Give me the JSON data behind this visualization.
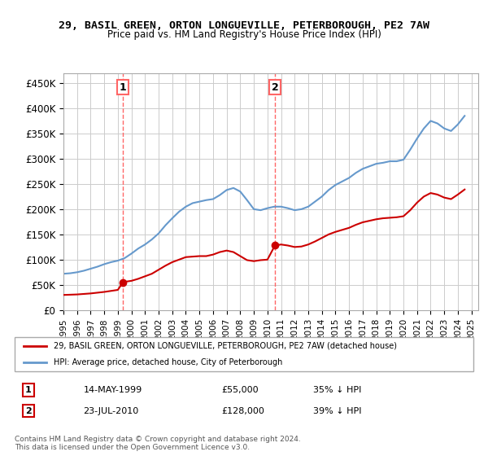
{
  "title": "29, BASIL GREEN, ORTON LONGUEVILLE, PETERBOROUGH, PE2 7AW",
  "subtitle": "Price paid vs. HM Land Registry's House Price Index (HPI)",
  "ylabel": "",
  "ylim": [
    0,
    470000
  ],
  "yticks": [
    0,
    50000,
    100000,
    150000,
    200000,
    250000,
    300000,
    350000,
    400000,
    450000
  ],
  "ytick_labels": [
    "£0",
    "£50K",
    "£100K",
    "£150K",
    "£200K",
    "£250K",
    "£300K",
    "£350K",
    "£400K",
    "£450K"
  ],
  "background_color": "#ffffff",
  "plot_bg_color": "#ffffff",
  "grid_color": "#cccccc",
  "sale1_date": 1999.37,
  "sale1_price": 55000,
  "sale1_label": "1",
  "sale1_vline_color": "#ff6666",
  "sale2_date": 2010.55,
  "sale2_price": 128000,
  "sale2_label": "2",
  "sale2_vline_color": "#ff6666",
  "red_line_color": "#cc0000",
  "blue_line_color": "#6699cc",
  "legend_red_label": "29, BASIL GREEN, ORTON LONGUEVILLE, PETERBOROUGH, PE2 7AW (detached house)",
  "legend_blue_label": "HPI: Average price, detached house, City of Peterborough",
  "table_row1": [
    "1",
    "14-MAY-1999",
    "£55,000",
    "35% ↓ HPI"
  ],
  "table_row2": [
    "2",
    "23-JUL-2010",
    "£128,000",
    "39% ↓ HPI"
  ],
  "footer": "Contains HM Land Registry data © Crown copyright and database right 2024.\nThis data is licensed under the Open Government Licence v3.0.",
  "hpi_years": [
    1995.0,
    1995.5,
    1996.0,
    1996.5,
    1997.0,
    1997.5,
    1998.0,
    1998.5,
    1999.0,
    1999.5,
    2000.0,
    2000.5,
    2001.0,
    2001.5,
    2002.0,
    2002.5,
    2003.0,
    2003.5,
    2004.0,
    2004.5,
    2005.0,
    2005.5,
    2006.0,
    2006.5,
    2007.0,
    2007.5,
    2008.0,
    2008.5,
    2009.0,
    2009.5,
    2010.0,
    2010.5,
    2011.0,
    2011.5,
    2012.0,
    2012.5,
    2013.0,
    2013.5,
    2014.0,
    2014.5,
    2015.0,
    2015.5,
    2016.0,
    2016.5,
    2017.0,
    2017.5,
    2018.0,
    2018.5,
    2019.0,
    2019.5,
    2020.0,
    2020.5,
    2021.0,
    2021.5,
    2022.0,
    2022.5,
    2023.0,
    2023.5,
    2024.0,
    2024.5
  ],
  "hpi_values": [
    72000,
    73000,
    75000,
    78000,
    82000,
    86000,
    91000,
    95000,
    98000,
    103000,
    112000,
    122000,
    130000,
    140000,
    152000,
    168000,
    182000,
    195000,
    205000,
    212000,
    215000,
    218000,
    220000,
    228000,
    238000,
    242000,
    235000,
    218000,
    200000,
    198000,
    202000,
    205000,
    205000,
    202000,
    198000,
    200000,
    205000,
    215000,
    225000,
    238000,
    248000,
    255000,
    262000,
    272000,
    280000,
    285000,
    290000,
    292000,
    295000,
    295000,
    298000,
    318000,
    340000,
    360000,
    375000,
    370000,
    360000,
    355000,
    368000,
    385000
  ],
  "red_years": [
    1995.0,
    1995.5,
    1996.0,
    1996.5,
    1997.0,
    1997.5,
    1998.0,
    1998.5,
    1999.0,
    1999.37,
    1999.5,
    2000.0,
    2000.5,
    2001.0,
    2001.5,
    2002.0,
    2002.5,
    2003.0,
    2003.5,
    2004.0,
    2004.5,
    2005.0,
    2005.5,
    2006.0,
    2006.5,
    2007.0,
    2007.5,
    2008.0,
    2008.5,
    2009.0,
    2009.5,
    2010.0,
    2010.55,
    2011.0,
    2011.5,
    2012.0,
    2012.5,
    2013.0,
    2013.5,
    2014.0,
    2014.5,
    2015.0,
    2015.5,
    2016.0,
    2016.5,
    2017.0,
    2017.5,
    2018.0,
    2018.5,
    2019.0,
    2019.5,
    2020.0,
    2020.5,
    2021.0,
    2021.5,
    2022.0,
    2022.5,
    2023.0,
    2023.5,
    2024.0,
    2024.5
  ],
  "red_values": [
    30000,
    30500,
    31000,
    32000,
    33000,
    34500,
    36000,
    38000,
    40000,
    55000,
    56000,
    58000,
    62000,
    67000,
    72000,
    80000,
    88000,
    95000,
    100000,
    105000,
    106000,
    107000,
    107000,
    110000,
    115000,
    118000,
    115000,
    107000,
    99000,
    97000,
    99000,
    100000,
    128000,
    130000,
    128000,
    125000,
    126000,
    130000,
    136000,
    143000,
    150000,
    155000,
    159000,
    163000,
    169000,
    174000,
    177000,
    180000,
    182000,
    183000,
    184000,
    186000,
    198000,
    213000,
    225000,
    232000,
    229000,
    223000,
    220000,
    229000,
    239000
  ],
  "xtick_years": [
    1995,
    1996,
    1997,
    1998,
    1999,
    2000,
    2001,
    2002,
    2003,
    2004,
    2005,
    2006,
    2007,
    2008,
    2009,
    2010,
    2011,
    2012,
    2013,
    2014,
    2015,
    2016,
    2017,
    2018,
    2019,
    2020,
    2021,
    2022,
    2023,
    2024,
    2025
  ],
  "xlim": [
    1995,
    2025.5
  ]
}
